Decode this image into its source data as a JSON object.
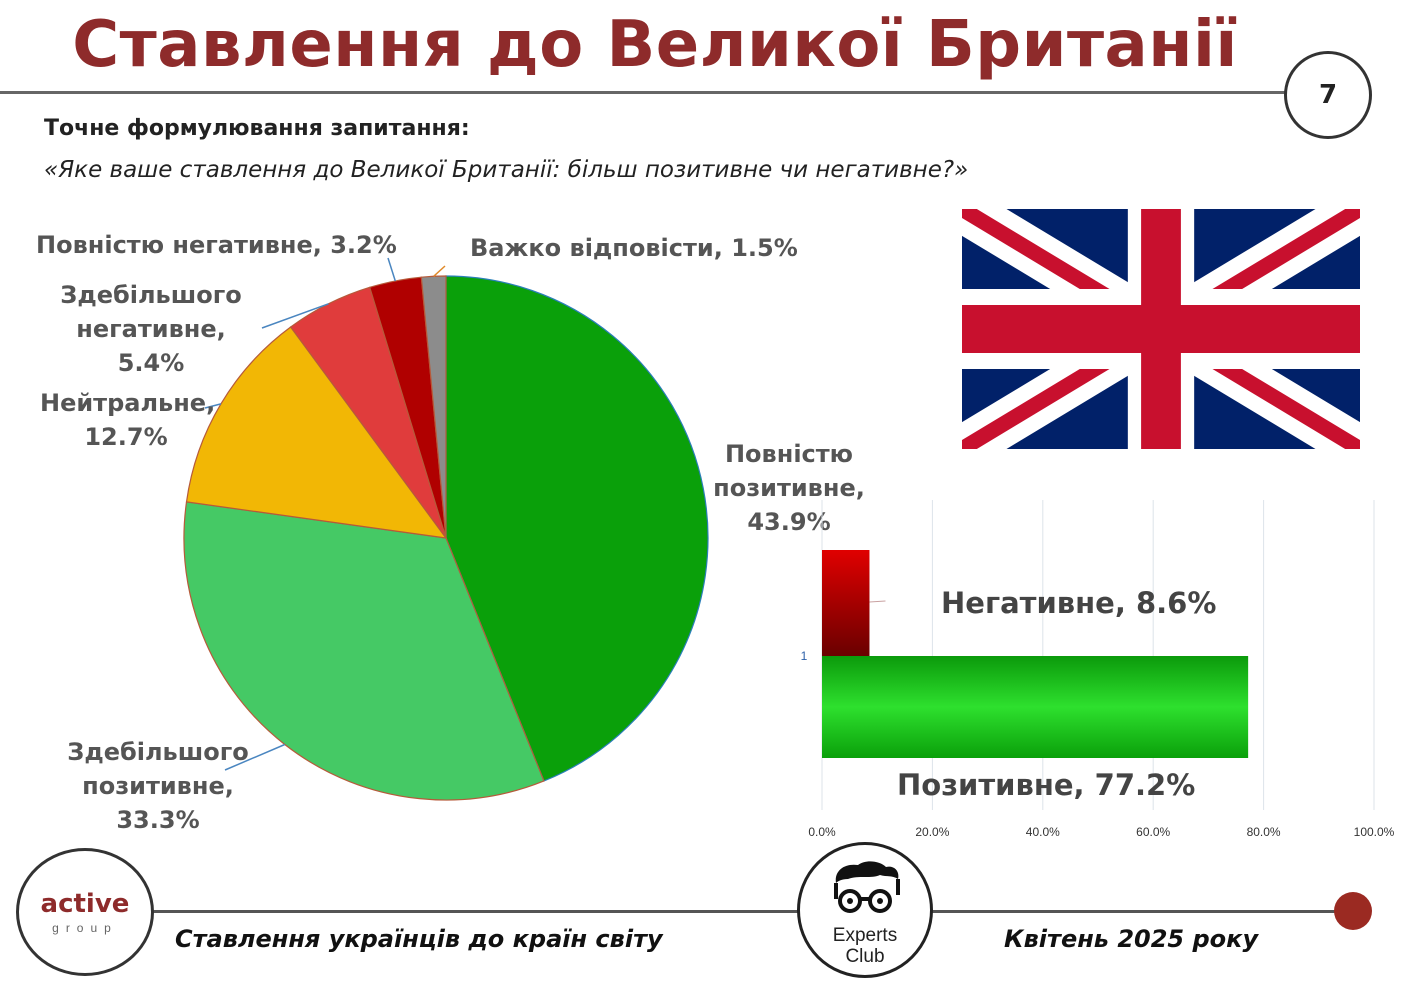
{
  "page": {
    "title": "Ставлення до Великої Британії",
    "page_number": "7",
    "question_heading": "Точне формулювання запитання:",
    "question_text": "«Яке ваше ставлення до Великої Британії: більш позитивне чи негативне?»"
  },
  "chart_data": [
    {
      "type": "pie",
      "slices": [
        {
          "label": "Повністю позитивне",
          "value": 43.9,
          "display": "Повністю позитивне, 43.9%",
          "color": "#0aa00a"
        },
        {
          "label": "Здебільшого позитивне",
          "value": 33.3,
          "display": "Здебільшого позитивне, 33.3%",
          "color": "#45c965"
        },
        {
          "label": "Нейтральне",
          "value": 12.7,
          "display": "Нейтральне, 12.7%",
          "color": "#f2b705"
        },
        {
          "label": "Здебільшого негативне",
          "value": 5.4,
          "display": "Здебільшого негативне, 5.4%",
          "color": "#e03c3c"
        },
        {
          "label": "Повністю негативне",
          "value": 3.2,
          "display": "Повністю негативне, 3.2%",
          "color": "#b00000"
        },
        {
          "label": "Важко відповісти",
          "value": 1.5,
          "display": "Важко відповісти, 1.5%",
          "color": "#8c8c8c"
        }
      ]
    },
    {
      "type": "bar",
      "orientation": "horizontal",
      "categories": [
        "1"
      ],
      "series": [
        {
          "name": "Негативне",
          "values": [
            8.6
          ],
          "display": "Негативне, 8.6%",
          "color": "#c00000"
        },
        {
          "name": "Позитивне",
          "values": [
            77.2
          ],
          "display": "Позитивне, 77.2%",
          "color": "#0aa00a"
        }
      ],
      "xlim": [
        0,
        100
      ],
      "x_ticks": [
        "0.0%",
        "20.0%",
        "40.0%",
        "60.0%",
        "80.0%",
        "100.0%"
      ],
      "grid": true
    }
  ],
  "pie_labels": {
    "full_neg": "Повністю негативне, 3.2%",
    "hard": "Важко відповісти, 1.5%",
    "mostly_neg_1": "Здебільшого",
    "mostly_neg_2": "негативне, 5.4%",
    "neutral_1": "Нейтральне,",
    "neutral_2": "12.7%",
    "full_pos_1": "Повністю",
    "full_pos_2": "позитивне,",
    "full_pos_3": "43.9%",
    "mostly_pos_1": "Здебільшого",
    "mostly_pos_2": "позитивне,",
    "mostly_pos_3": "33.3%"
  },
  "footer": {
    "left_text": "Ставлення українців до країн світу",
    "right_text": "Квітень 2025 року",
    "logo_left_word": "active",
    "logo_left_sub": "group",
    "logo_center_1": "Experts",
    "logo_center_2": "Club"
  },
  "flag_icon": "uk-flag-icon"
}
